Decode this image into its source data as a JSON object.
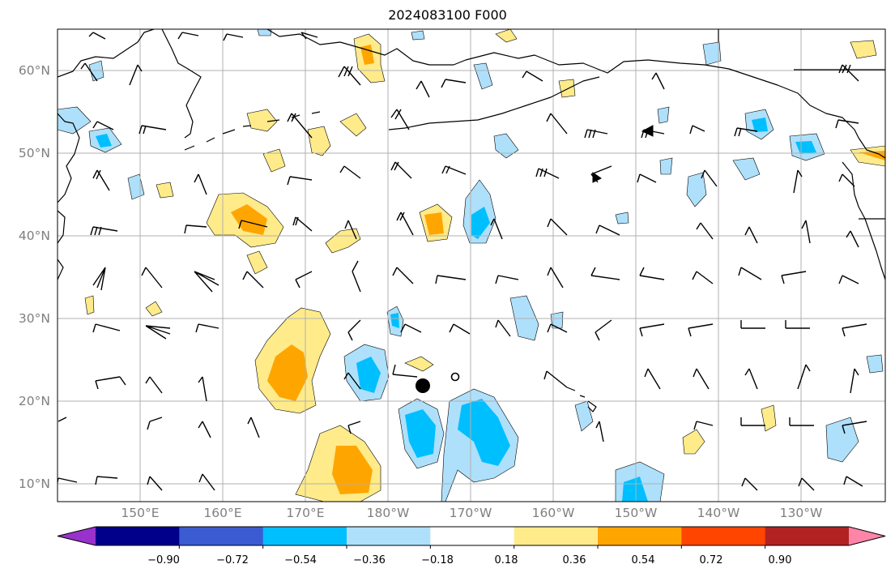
{
  "title": "2024083100 F000",
  "lat_ticks": [
    "60°N",
    "50°N",
    "40°N",
    "30°N",
    "20°N",
    "10°N"
  ],
  "lon_ticks": [
    "150°E",
    "160°E",
    "170°E",
    "180°W",
    "170°W",
    "160°W",
    "150°W",
    "140°W",
    "130°W"
  ],
  "colorbar": {
    "tick_labels": [
      "−0.90",
      "−0.72",
      "−0.54",
      "−0.36",
      "−0.18",
      "0.18",
      "0.36",
      "0.54",
      "0.72",
      "0.90"
    ],
    "bins": [
      {
        "from": null,
        "to": -0.9,
        "color": "#9932cc"
      },
      {
        "from": -0.9,
        "to": -0.72,
        "color": "#00008b"
      },
      {
        "from": -0.72,
        "to": -0.54,
        "color": "#3a5bd2"
      },
      {
        "from": -0.54,
        "to": -0.36,
        "color": "#00bfff"
      },
      {
        "from": -0.36,
        "to": -0.18,
        "color": "#aee0fb"
      },
      {
        "from": -0.18,
        "to": 0.18,
        "color": "#ffffff"
      },
      {
        "from": 0.18,
        "to": 0.36,
        "color": "#ffeb8a"
      },
      {
        "from": 0.36,
        "to": 0.54,
        "color": "#ffa500"
      },
      {
        "from": 0.54,
        "to": 0.72,
        "color": "#ff4500"
      },
      {
        "from": 0.72,
        "to": 0.9,
        "color": "#b22222"
      },
      {
        "from": 0.9,
        "to": null,
        "color": "#ff85a8"
      }
    ]
  },
  "map": {
    "lon_range": [
      140,
      240
    ],
    "lat_range": [
      8,
      65
    ],
    "gridlines": true
  }
}
